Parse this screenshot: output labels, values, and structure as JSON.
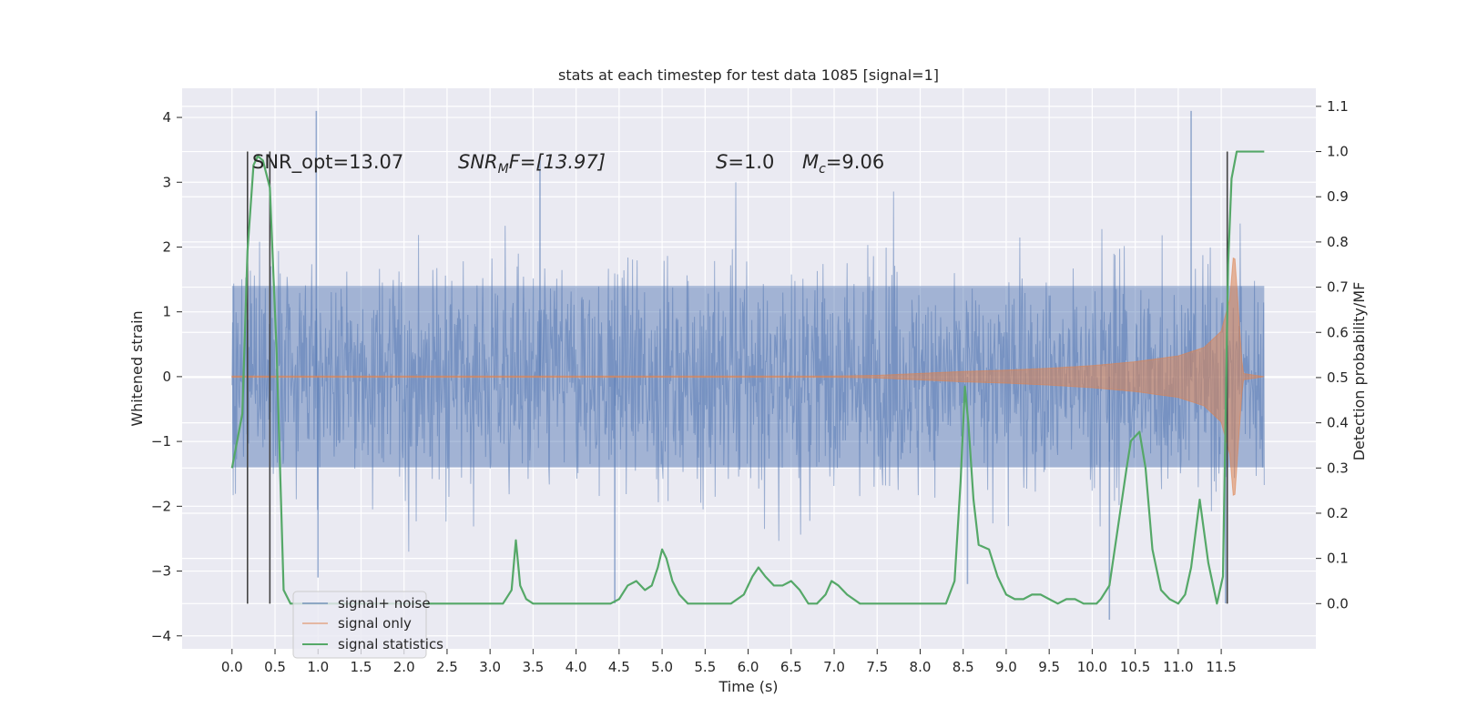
{
  "chart_data": {
    "type": "line",
    "title": "stats at each timestep for test data 1085 [signal=1]",
    "xlabel": "Time (s)",
    "ylabel_left": "Whitened strain",
    "ylabel_right": "Detection probability/MF",
    "xlim": [
      -0.58,
      12.6
    ],
    "ylim_left": [
      -4.2,
      4.45
    ],
    "ylim_right": [
      -0.1,
      1.14
    ],
    "x_ticks": [
      "0.0",
      "0.5",
      "1.0",
      "1.5",
      "2.0",
      "2.5",
      "3.0",
      "3.5",
      "4.0",
      "4.5",
      "5.0",
      "5.5",
      "6.0",
      "6.5",
      "7.0",
      "7.5",
      "8.0",
      "8.5",
      "9.0",
      "9.5",
      "10.0",
      "10.5",
      "11.0",
      "11.5"
    ],
    "y_ticks_left": [
      "4",
      "3",
      "2",
      "1",
      "0",
      "−1",
      "−2",
      "−3",
      "−4"
    ],
    "y_ticks_right": [
      "1.1",
      "1.0",
      "0.9",
      "0.8",
      "0.7",
      "0.6",
      "0.5",
      "0.4",
      "0.3",
      "0.2",
      "0.1",
      "0.0"
    ],
    "grid": true,
    "legend_position": "lower-left",
    "legend": [
      "signal+ noise",
      "signal only",
      "signal statistics"
    ],
    "colors": {
      "signal_noise": "#4c72b0",
      "signal_only": "#dd8452",
      "signal_statistics": "#55a868",
      "vlines": "#444444",
      "background": "#eaeaf2"
    },
    "annotations": {
      "snr_opt": "SNR_opt=13.07",
      "snr_mf_label": "SNR",
      "snr_mf_sub": "M",
      "snr_mf_value": "F=[13.97]",
      "s_label": "S",
      "s_value": "=1.0",
      "mc_label": "M",
      "mc_sub": "c",
      "mc_value": "=9.06"
    },
    "series": [
      {
        "name": "signal+ noise",
        "axis": "left",
        "t_range": [
          0.0,
          12.0
        ],
        "core_band": [
          -1.4,
          1.4
        ],
        "typical_extent": [
          -2.3,
          2.4
        ],
        "notable_peaks": [
          [
            0.98,
            4.1
          ],
          [
            3.58,
            3.4
          ],
          [
            11.15,
            4.1
          ],
          [
            1.0,
            -3.1
          ],
          [
            4.45,
            -3.5
          ],
          [
            10.2,
            -3.75
          ],
          [
            11.55,
            -3.5
          ],
          [
            8.55,
            -3.2
          ]
        ]
      },
      {
        "name": "signal only",
        "axis": "left",
        "t_range": [
          0.0,
          12.0
        ],
        "envelope": [
          [
            0.0,
            0.01
          ],
          [
            7.0,
            0.01
          ],
          [
            7.5,
            0.02
          ],
          [
            8.0,
            0.05
          ],
          [
            8.5,
            0.08
          ],
          [
            9.0,
            0.1
          ],
          [
            9.5,
            0.13
          ],
          [
            10.0,
            0.17
          ],
          [
            10.5,
            0.23
          ],
          [
            11.0,
            0.32
          ],
          [
            11.3,
            0.45
          ],
          [
            11.5,
            0.7
          ],
          [
            11.6,
            1.2
          ],
          [
            11.65,
            2.0
          ],
          [
            11.75,
            0.05
          ],
          [
            12.0,
            0.0
          ]
        ]
      },
      {
        "name": "signal statistics",
        "axis": "right",
        "x": [
          0.0,
          0.12,
          0.18,
          0.25,
          0.3,
          0.36,
          0.44,
          0.52,
          0.6,
          0.68,
          0.75,
          1.0,
          1.5,
          2.0,
          2.5,
          3.0,
          3.15,
          3.25,
          3.3,
          3.35,
          3.42,
          3.5,
          3.8,
          4.1,
          4.4,
          4.5,
          4.6,
          4.7,
          4.8,
          4.88,
          4.95,
          5.0,
          5.05,
          5.12,
          5.2,
          5.3,
          5.5,
          5.8,
          5.95,
          6.05,
          6.12,
          6.2,
          6.3,
          6.4,
          6.5,
          6.6,
          6.7,
          6.8,
          6.9,
          6.97,
          7.05,
          7.15,
          7.3,
          7.5,
          8.0,
          8.3,
          8.4,
          8.47,
          8.52,
          8.56,
          8.62,
          8.68,
          8.8,
          8.9,
          9.0,
          9.1,
          9.2,
          9.3,
          9.4,
          9.5,
          9.6,
          9.7,
          9.8,
          9.9,
          10.0,
          10.05,
          10.1,
          10.2,
          10.3,
          10.4,
          10.45,
          10.5,
          10.55,
          10.62,
          10.7,
          10.8,
          10.9,
          11.0,
          11.08,
          11.15,
          11.25,
          11.35,
          11.45,
          11.52,
          11.58,
          11.62,
          11.68,
          11.75,
          12.0
        ],
        "y": [
          0.3,
          0.42,
          0.78,
          0.97,
          0.99,
          0.98,
          0.92,
          0.55,
          0.03,
          0.0,
          0.0,
          0.0,
          0.0,
          0.0,
          0.0,
          0.0,
          0.0,
          0.03,
          0.14,
          0.04,
          0.01,
          0.0,
          0.0,
          0.0,
          0.0,
          0.01,
          0.04,
          0.05,
          0.03,
          0.04,
          0.08,
          0.12,
          0.1,
          0.05,
          0.02,
          0.0,
          0.0,
          0.0,
          0.02,
          0.06,
          0.08,
          0.06,
          0.04,
          0.04,
          0.05,
          0.03,
          0.0,
          0.0,
          0.02,
          0.05,
          0.04,
          0.02,
          0.0,
          0.0,
          0.0,
          0.0,
          0.05,
          0.27,
          0.48,
          0.4,
          0.23,
          0.13,
          0.12,
          0.06,
          0.02,
          0.01,
          0.01,
          0.02,
          0.02,
          0.01,
          0.0,
          0.01,
          0.01,
          0.0,
          0.0,
          0.0,
          0.01,
          0.04,
          0.17,
          0.3,
          0.36,
          0.37,
          0.38,
          0.3,
          0.12,
          0.03,
          0.01,
          0.0,
          0.02,
          0.08,
          0.23,
          0.09,
          0.0,
          0.06,
          0.75,
          0.94,
          1.0,
          1.0,
          1.0
        ]
      }
    ],
    "vertical_lines": [
      0.18,
      0.44,
      11.57
    ]
  }
}
